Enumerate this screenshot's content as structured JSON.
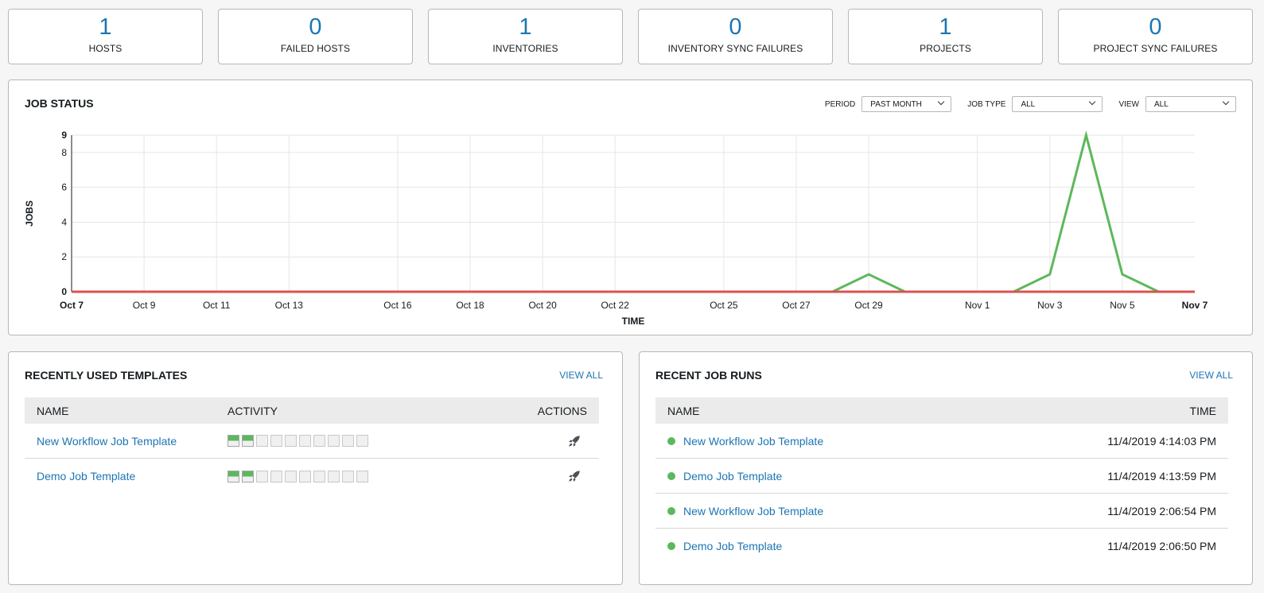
{
  "counts": [
    {
      "value": "1",
      "label": "HOSTS"
    },
    {
      "value": "0",
      "label": "FAILED HOSTS"
    },
    {
      "value": "1",
      "label": "INVENTORIES"
    },
    {
      "value": "0",
      "label": "INVENTORY SYNC FAILURES"
    },
    {
      "value": "1",
      "label": "PROJECTS"
    },
    {
      "value": "0",
      "label": "PROJECT SYNC FAILURES"
    }
  ],
  "job_status": {
    "title": "JOB STATUS",
    "period_label": "PERIOD",
    "period_value": "PAST MONTH",
    "job_type_label": "JOB TYPE",
    "job_type_value": "ALL",
    "view_label": "VIEW",
    "view_value": "ALL"
  },
  "chart_data": {
    "type": "line",
    "xlabel": "TIME",
    "ylabel": "JOBS",
    "ylim": [
      0,
      9
    ],
    "yticks": [
      0,
      2,
      4,
      6,
      8,
      9
    ],
    "x_tick_labels": [
      "Oct 7",
      "Oct 9",
      "Oct 11",
      "Oct 13",
      "Oct 16",
      "Oct 18",
      "Oct 20",
      "Oct 22",
      "Oct 25",
      "Oct 27",
      "Oct 29",
      "Nov 1",
      "Nov 3",
      "Nov 5",
      "Nov 7"
    ],
    "grid": true,
    "series": [
      {
        "color": "#5cb85c",
        "x": [
          "Oct 7",
          "Oct 8",
          "Oct 9",
          "Oct 10",
          "Oct 11",
          "Oct 12",
          "Oct 13",
          "Oct 14",
          "Oct 15",
          "Oct 16",
          "Oct 17",
          "Oct 18",
          "Oct 19",
          "Oct 20",
          "Oct 21",
          "Oct 22",
          "Oct 23",
          "Oct 24",
          "Oct 25",
          "Oct 26",
          "Oct 27",
          "Oct 28",
          "Oct 29",
          "Oct 30",
          "Oct 31",
          "Nov 1",
          "Nov 2",
          "Nov 3",
          "Nov 4",
          "Nov 5",
          "Nov 6",
          "Nov 7"
        ],
        "values": [
          0,
          0,
          0,
          0,
          0,
          0,
          0,
          0,
          0,
          0,
          0,
          0,
          0,
          0,
          0,
          0,
          0,
          0,
          0,
          0,
          0,
          0,
          1,
          0,
          0,
          0,
          0,
          1,
          9,
          1,
          0,
          0
        ]
      },
      {
        "color": "#d9534f",
        "x": [
          "Oct 7",
          "Nov 7"
        ],
        "values": [
          0,
          0
        ]
      }
    ]
  },
  "templates": {
    "title": "RECENTLY USED TEMPLATES",
    "view_all": "VIEW ALL",
    "columns": [
      "NAME",
      "ACTIVITY",
      "ACTIONS"
    ],
    "rows": [
      {
        "name": "New Workflow Job Template",
        "activity": [
          "success",
          "success",
          "none",
          "none",
          "none",
          "none",
          "none",
          "none",
          "none",
          "none"
        ]
      },
      {
        "name": "Demo Job Template",
        "activity": [
          "success",
          "success",
          "none",
          "none",
          "none",
          "none",
          "none",
          "none",
          "none",
          "none"
        ]
      }
    ],
    "action_icon": "rocket-icon"
  },
  "runs": {
    "title": "RECENT JOB RUNS",
    "view_all": "VIEW ALL",
    "columns": [
      "NAME",
      "TIME"
    ],
    "rows": [
      {
        "name": "New Workflow Job Template",
        "time": "11/4/2019 4:14:03 PM",
        "status": "success"
      },
      {
        "name": "Demo Job Template",
        "time": "11/4/2019 4:13:59 PM",
        "status": "success"
      },
      {
        "name": "New Workflow Job Template",
        "time": "11/4/2019 2:06:54 PM",
        "status": "success"
      },
      {
        "name": "Demo Job Template",
        "time": "11/4/2019 2:06:50 PM",
        "status": "success"
      }
    ],
    "status_color": "#5cb85c"
  }
}
